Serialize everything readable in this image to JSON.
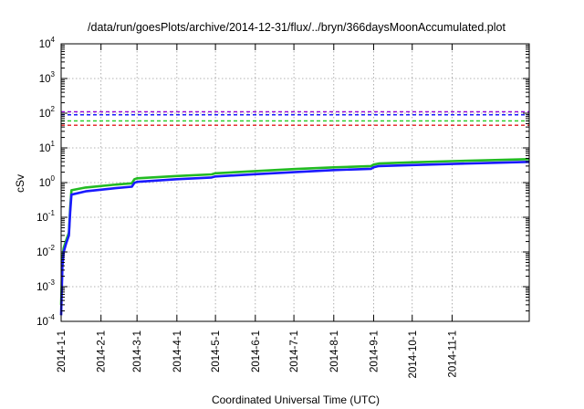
{
  "chart_data": {
    "type": "line",
    "title": "/data/run/goesPlots/archive/2014-12-31/flux/../bryn/366daysMoonAccumulated.plot",
    "xlabel": "Coordinated Universal Time (UTC)",
    "ylabel": "cSv",
    "y_scale": "log",
    "ylim": [
      0.0001,
      10000
    ],
    "xlim": [
      "2014-01-01",
      "2014-12-31"
    ],
    "grid": true,
    "legend": "none",
    "x_ticks": [
      "2014-1-1",
      "2014-2-1",
      "2014-3-1",
      "2014-4-1",
      "2014-5-1",
      "2014-6-1",
      "2014-7-1",
      "2014-8-1",
      "2014-9-1",
      "2014-10-1",
      "2014-11-1"
    ],
    "y_ticks": [
      {
        "value": 0.0001,
        "base": "10",
        "exp": "-4"
      },
      {
        "value": 0.001,
        "base": "10",
        "exp": "-3"
      },
      {
        "value": 0.01,
        "base": "10",
        "exp": "-2"
      },
      {
        "value": 0.1,
        "base": "10",
        "exp": "-1"
      },
      {
        "value": 1,
        "base": "10",
        "exp": "0"
      },
      {
        "value": 10,
        "base": "10",
        "exp": "1"
      },
      {
        "value": 100,
        "base": "10",
        "exp": "2"
      },
      {
        "value": 1000,
        "base": "10",
        "exp": "3"
      },
      {
        "value": 10000,
        "base": "10",
        "exp": "4"
      }
    ],
    "reference_lines": [
      {
        "value": 110,
        "color": "#9400d3"
      },
      {
        "value": 90,
        "color": "#1a1aff"
      },
      {
        "value": 60,
        "color": "#22cc22"
      },
      {
        "value": 45,
        "color": "#e31a1c"
      }
    ],
    "series": [
      {
        "color": "#22bb22",
        "points": [
          [
            "2014-01-01",
            0.0003
          ],
          [
            "2014-01-02",
            0.006
          ],
          [
            "2014-01-03",
            0.013
          ],
          [
            "2014-01-05",
            0.022
          ],
          [
            "2014-01-07",
            0.036
          ],
          [
            "2014-01-08",
            0.18
          ],
          [
            "2014-01-09",
            0.6
          ],
          [
            "2014-01-20",
            0.72
          ],
          [
            "2014-02-10",
            0.86
          ],
          [
            "2014-02-25",
            0.95
          ],
          [
            "2014-02-27",
            1.25
          ],
          [
            "2014-03-01",
            1.33
          ],
          [
            "2014-04-01",
            1.55
          ],
          [
            "2014-04-28",
            1.72
          ],
          [
            "2014-05-01",
            1.85
          ],
          [
            "2014-06-01",
            2.15
          ],
          [
            "2014-07-01",
            2.45
          ],
          [
            "2014-08-01",
            2.75
          ],
          [
            "2014-08-30",
            3.0
          ],
          [
            "2014-09-01",
            3.3
          ],
          [
            "2014-09-05",
            3.55
          ],
          [
            "2014-10-01",
            3.85
          ],
          [
            "2014-11-01",
            4.15
          ],
          [
            "2014-12-01",
            4.45
          ],
          [
            "2014-12-31",
            4.75
          ]
        ]
      },
      {
        "color": "#1a1aff",
        "points": [
          [
            "2014-01-01",
            0.00015
          ],
          [
            "2014-01-02",
            0.004
          ],
          [
            "2014-01-03",
            0.01
          ],
          [
            "2014-01-05",
            0.018
          ],
          [
            "2014-01-07",
            0.03
          ],
          [
            "2014-01-08",
            0.14
          ],
          [
            "2014-01-09",
            0.45
          ],
          [
            "2014-01-20",
            0.56
          ],
          [
            "2014-02-10",
            0.68
          ],
          [
            "2014-02-25",
            0.76
          ],
          [
            "2014-02-27",
            0.98
          ],
          [
            "2014-03-01",
            1.05
          ],
          [
            "2014-04-01",
            1.25
          ],
          [
            "2014-04-28",
            1.4
          ],
          [
            "2014-05-01",
            1.5
          ],
          [
            "2014-06-01",
            1.75
          ],
          [
            "2014-07-01",
            2.0
          ],
          [
            "2014-08-01",
            2.3
          ],
          [
            "2014-08-30",
            2.5
          ],
          [
            "2014-09-01",
            2.75
          ],
          [
            "2014-09-05",
            3.0
          ],
          [
            "2014-10-01",
            3.2
          ],
          [
            "2014-11-01",
            3.45
          ],
          [
            "2014-12-01",
            3.7
          ],
          [
            "2014-12-31",
            3.95
          ]
        ]
      }
    ]
  }
}
